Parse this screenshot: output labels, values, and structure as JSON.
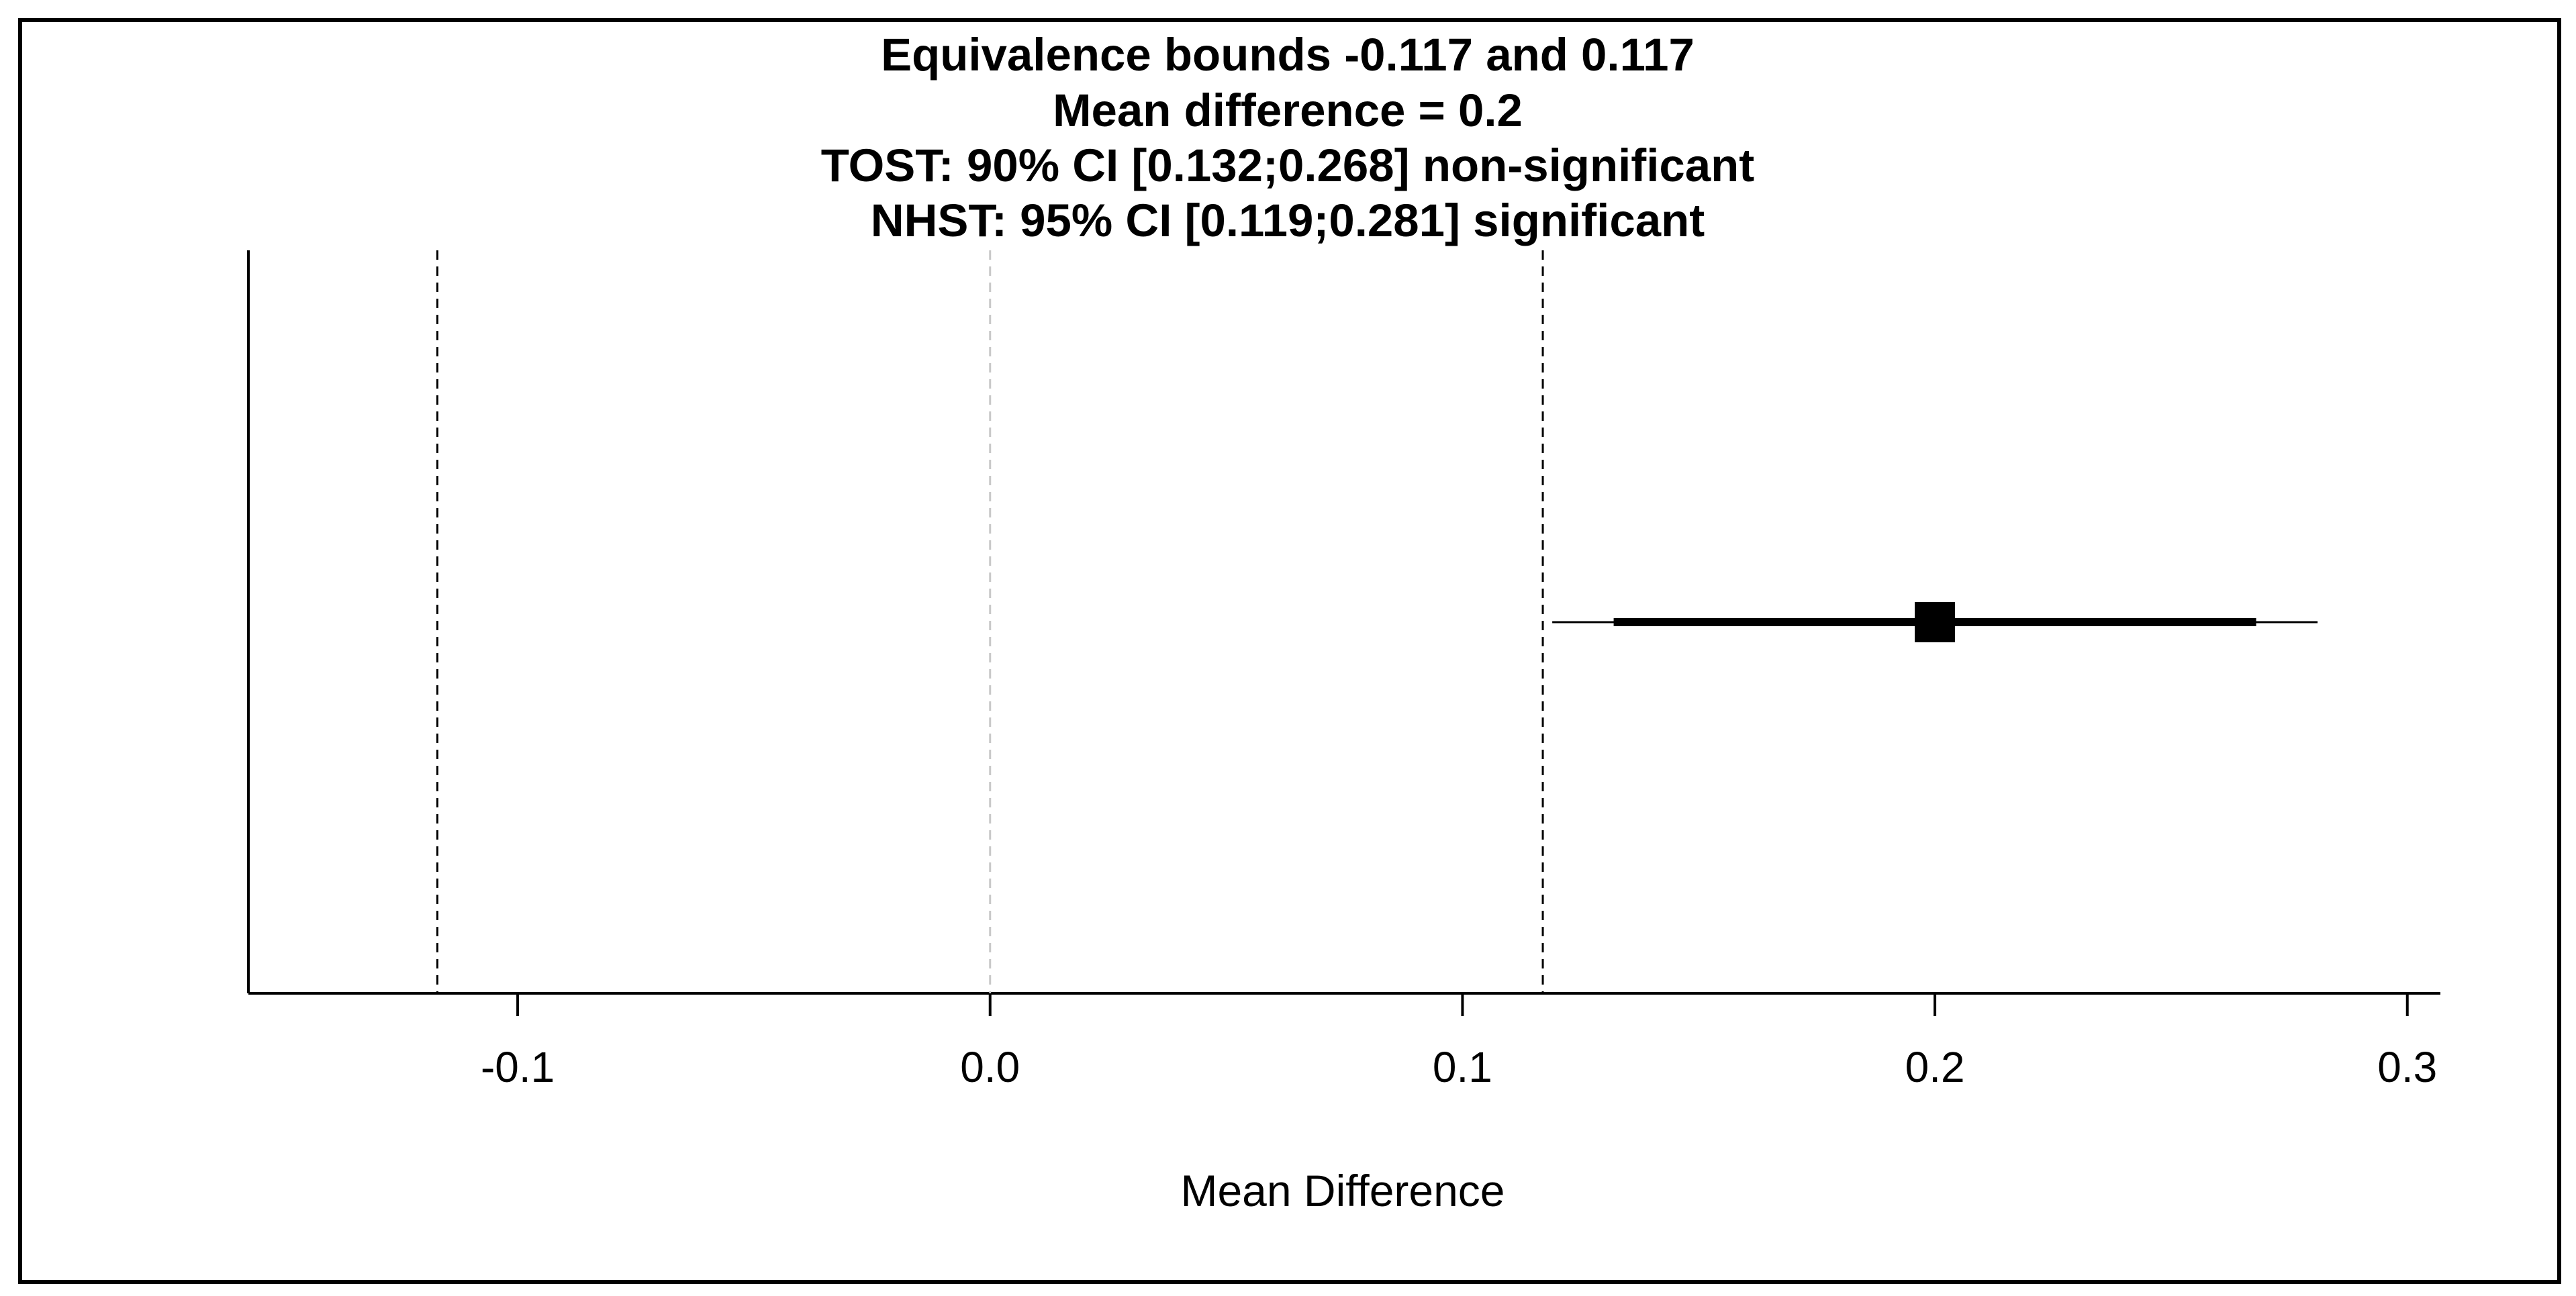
{
  "chart_data": {
    "type": "forest",
    "title_lines": [
      "Equivalence bounds -0.117 and 0.117",
      "Mean difference = 0.2",
      "TOST: 90% CI [0.132;0.268] non-significant",
      "NHST: 95% CI [0.119;0.281] significant"
    ],
    "xlabel": "Mean Difference",
    "ylabel": "",
    "xlim": [
      -0.157,
      0.307
    ],
    "x_ticks": [
      -0.1,
      0.0,
      0.1,
      0.2,
      0.3
    ],
    "x_tick_labels": [
      "-0.1",
      "0.0",
      "0.1",
      "0.2",
      "0.3"
    ],
    "equivalence_bounds": [
      -0.117,
      0.117
    ],
    "reference_line": 0.0,
    "estimate": 0.2,
    "ci_90": [
      0.132,
      0.268
    ],
    "ci_95": [
      0.119,
      0.281
    ],
    "grid": false,
    "colors": {
      "bound_line": "#000000",
      "reference_line": "#c8c8c8",
      "estimate": "#000000",
      "frame": "#000000"
    }
  }
}
